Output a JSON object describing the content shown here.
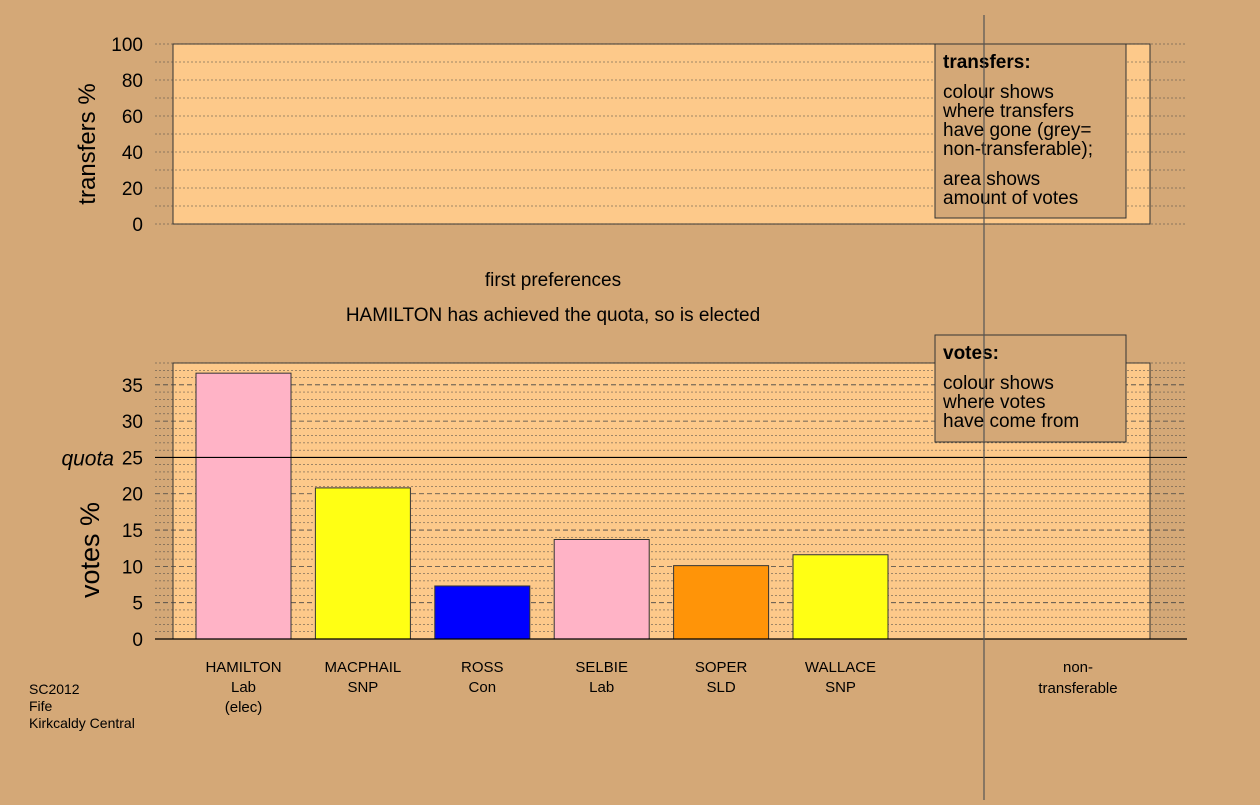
{
  "colors": {
    "background": "#d4a877",
    "plot_fill": "#fdc98a",
    "box_fill": "#d4a877",
    "Lab": "#ffb3c6",
    "SNP": "#ffff14",
    "Con": "#0000ff",
    "SLD": "#ff9408"
  },
  "chart_data": [
    {
      "type": "bar",
      "ylabel": "transfers %",
      "ylim": [
        0,
        100
      ],
      "yticks": [
        0,
        20,
        40,
        60,
        80,
        100
      ],
      "grid": true,
      "values": [],
      "legend_box": {
        "position": "top-right",
        "title": "transfers:",
        "lines1": [
          "colour shows",
          "where transfers",
          "have gone (grey=",
          "non-transferable);"
        ],
        "lines2": [
          "area shows",
          "amount of votes"
        ]
      }
    },
    {
      "type": "bar",
      "title": "first preferences",
      "subtitle": "HAMILTON has achieved the quota, so is elected",
      "ylabel": "votes %",
      "ylim": [
        0,
        38
      ],
      "yticks": [
        0,
        5,
        10,
        15,
        20,
        25,
        30,
        35
      ],
      "grid": true,
      "quota": 25,
      "quota_label": "quota",
      "categories": [
        {
          "name": "HAMILTON",
          "party": "Lab",
          "note": "(elec)",
          "value": 36.6,
          "color": "#ffb3c6"
        },
        {
          "name": "MACPHAIL",
          "party": "SNP",
          "note": "",
          "value": 20.8,
          "color": "#ffff14"
        },
        {
          "name": "ROSS",
          "party": "Con",
          "note": "",
          "value": 7.3,
          "color": "#0000ff"
        },
        {
          "name": "SELBIE",
          "party": "Lab",
          "note": "",
          "value": 13.7,
          "color": "#ffb3c6"
        },
        {
          "name": "SOPER",
          "party": "SLD",
          "note": "",
          "value": 10.1,
          "color": "#ff9408"
        },
        {
          "name": "WALLACE",
          "party": "SNP",
          "note": "",
          "value": 11.6,
          "color": "#ffff14"
        }
      ],
      "nontransferable_label": [
        "non-",
        "transferable"
      ],
      "legend_box": {
        "position": "top-right",
        "title": "votes:",
        "lines1": [
          "colour shows",
          "where votes",
          "have come from"
        ]
      }
    }
  ],
  "footer": [
    "SC2012",
    "Fife",
    "Kirkcaldy Central"
  ]
}
